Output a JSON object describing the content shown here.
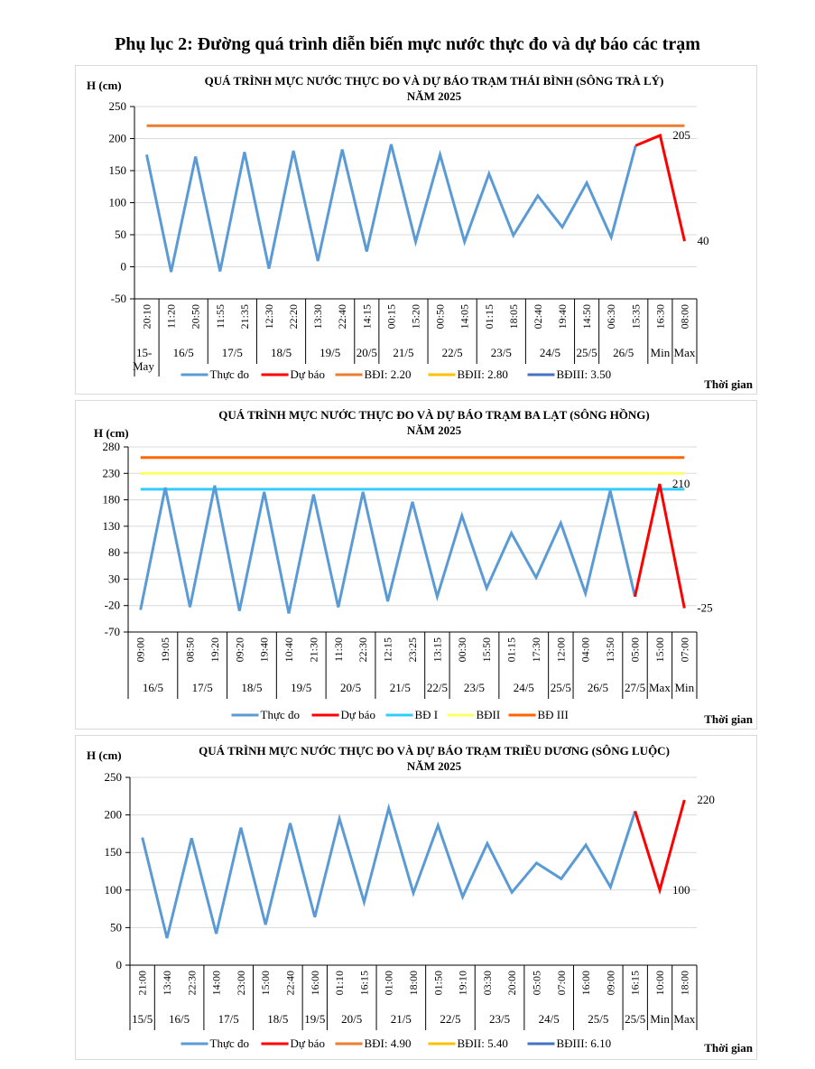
{
  "page": {
    "title": "Phụ lục 2: Đường quá trình diễn biến mực nước thực đo và dự báo các trạm"
  },
  "chart_data": [
    {
      "type": "line",
      "title_line1": "QUÁ TRÌNH MỰC NƯỚC THỰC ĐO VÀ DỰ BÁO TRẠM THÁI BÌNH (SÔNG TRÀ LÝ)",
      "title_line2": "NĂM 2025",
      "ylabel": "H (cm)",
      "xlabel": "Thời gian",
      "ylim": [
        -50,
        250
      ],
      "yticks": [
        -50,
        0,
        50,
        100,
        150,
        200,
        250
      ],
      "grid": true,
      "legend_position": "bottom",
      "categories": [
        "20:10",
        "11:20",
        "20:50",
        "11:55",
        "21:35",
        "12:30",
        "22:20",
        "13:30",
        "22:40",
        "14:15",
        "00:15",
        "15:20",
        "00:50",
        "14:05",
        "01:15",
        "18:05",
        "02:40",
        "19:40",
        "14:50",
        "06:30",
        "15:35",
        "16:30",
        "08:00"
      ],
      "groups": [
        {
          "label": "15-May",
          "count": 1
        },
        {
          "label": "16/5",
          "count": 2
        },
        {
          "label": "17/5",
          "count": 2
        },
        {
          "label": "18/5",
          "count": 2
        },
        {
          "label": "19/5",
          "count": 2
        },
        {
          "label": "20/5",
          "count": 1
        },
        {
          "label": "21/5",
          "count": 2
        },
        {
          "label": "22/5",
          "count": 2
        },
        {
          "label": "23/5",
          "count": 2
        },
        {
          "label": "24/5",
          "count": 2
        },
        {
          "label": "25/5",
          "count": 1
        },
        {
          "label": "26/5",
          "count": 2
        },
        {
          "label": "Min",
          "count": 1
        },
        {
          "label": "Max",
          "count": 1
        }
      ],
      "series": [
        {
          "name": "Thực đo",
          "color": "#5b9bd5",
          "start": 0,
          "values": [
            175,
            -8,
            172,
            -7,
            179,
            -3,
            181,
            9,
            183,
            24,
            191,
            39,
            175,
            39,
            145,
            49,
            111,
            62,
            131,
            46,
            189
          ]
        },
        {
          "name": "Dự báo",
          "color": "#ff0000",
          "start": 20,
          "values": [
            189,
            205,
            40
          ]
        },
        {
          "name": "BĐI: 2.20",
          "color": "#ed7d31",
          "constant": 220
        },
        {
          "name": "BĐII: 2.80",
          "color": "#ffc000",
          "constant": null
        },
        {
          "name": "BĐIII: 3.50",
          "color": "#4472c4",
          "constant": null
        }
      ],
      "annotations": [
        {
          "index": 21,
          "value": 205,
          "text": "205"
        },
        {
          "index": 22,
          "value": 40,
          "text": "40"
        }
      ]
    },
    {
      "type": "line",
      "title_line1": "QUÁ TRÌNH MỰC NƯỚC THỰC ĐO VÀ DỰ BÁO TRẠM BA LẠT (SÔNG HỒNG)",
      "title_line2": "NĂM 2025",
      "ylabel": "H (cm)",
      "xlabel": "Thời gian",
      "ylim": [
        -70,
        280
      ],
      "yticks": [
        -70,
        -20,
        30,
        80,
        130,
        180,
        230,
        280
      ],
      "grid": true,
      "legend_position": "bottom",
      "categories": [
        "09:00",
        "19:05",
        "08:50",
        "19:20",
        "09:20",
        "19:40",
        "10:40",
        "21:30",
        "11:30",
        "22:30",
        "12:15",
        "23:25",
        "13:15",
        "00:30",
        "15:50",
        "01:15",
        "17:30",
        "12:00",
        "04:00",
        "13:50",
        "05:00",
        "15:00",
        "07:00"
      ],
      "groups": [
        {
          "label": "16/5",
          "count": 2
        },
        {
          "label": "17/5",
          "count": 2
        },
        {
          "label": "18/5",
          "count": 2
        },
        {
          "label": "19/5",
          "count": 2
        },
        {
          "label": "20/5",
          "count": 2
        },
        {
          "label": "21/5",
          "count": 2
        },
        {
          "label": "22/5",
          "count": 1
        },
        {
          "label": "23/5",
          "count": 2
        },
        {
          "label": "24/5",
          "count": 2
        },
        {
          "label": "25/5",
          "count": 1
        },
        {
          "label": "26/5",
          "count": 2
        },
        {
          "label": "27/5",
          "count": 1
        },
        {
          "label": "Max",
          "count": 1
        },
        {
          "label": "Min",
          "count": 1
        }
      ],
      "series": [
        {
          "name": "Thực đo",
          "color": "#5b9bd5",
          "start": 0,
          "values": [
            -28,
            203,
            -23,
            207,
            -30,
            195,
            -35,
            190,
            -23,
            195,
            -12,
            176,
            -3,
            150,
            13,
            117,
            33,
            136,
            3,
            197,
            -3
          ]
        },
        {
          "name": "Dự báo",
          "color": "#ff0000",
          "start": 20,
          "values": [
            -3,
            210,
            -25
          ]
        },
        {
          "name": "BĐ I",
          "color": "#33ccff",
          "constant": 200
        },
        {
          "name": "BĐII",
          "color": "#ffff66",
          "constant": 230
        },
        {
          "name": "BĐ III",
          "color": "#ff6600",
          "constant": 260
        }
      ],
      "annotations": [
        {
          "index": 21,
          "value": 210,
          "text": "210"
        },
        {
          "index": 22,
          "value": -25,
          "text": "-25"
        }
      ]
    },
    {
      "type": "line",
      "title_line1": "QUÁ TRÌNH MỰC NƯỚC THỰC ĐO VÀ DỰ BÁO TRẠM TRIỀU DƯƠNG  (SÔNG LUỘC)",
      "title_line2": "NĂM 2025",
      "ylabel": "H (cm)",
      "xlabel": "Thời gian",
      "ylim": [
        0,
        250
      ],
      "yticks": [
        0,
        50,
        100,
        150,
        200,
        250
      ],
      "grid": true,
      "legend_position": "bottom",
      "categories": [
        "21:00",
        "13:40",
        "22:30",
        "14:00",
        "23:00",
        "15:00",
        "22:40",
        "16:00",
        "01:10",
        "16:15",
        "01:00",
        "18:00",
        "01:50",
        "19:10",
        "03:30",
        "20:00",
        "05:05",
        "07:00",
        "16:00",
        "09:00",
        "16:15",
        "10:00",
        "18:00"
      ],
      "groups": [
        {
          "label": "15/5",
          "count": 1
        },
        {
          "label": "16/5",
          "count": 2
        },
        {
          "label": "17/5",
          "count": 2
        },
        {
          "label": "18/5",
          "count": 2
        },
        {
          "label": "19/5",
          "count": 1
        },
        {
          "label": "20/5",
          "count": 2
        },
        {
          "label": "21/5",
          "count": 2
        },
        {
          "label": "22/5",
          "count": 2
        },
        {
          "label": "23/5",
          "count": 2
        },
        {
          "label": "24/5",
          "count": 2
        },
        {
          "label": "25/5",
          "count": 2
        },
        {
          "label": "25/5",
          "count": 1
        },
        {
          "label": "Min",
          "count": 1
        },
        {
          "label": "Max",
          "count": 1
        }
      ],
      "series": [
        {
          "name": "Thực đo",
          "color": "#5b9bd5",
          "start": 0,
          "values": [
            170,
            36,
            169,
            42,
            183,
            54,
            189,
            64,
            195,
            84,
            209,
            96,
            186,
            91,
            162,
            97,
            136,
            115,
            160,
            104,
            205
          ]
        },
        {
          "name": "Dự báo",
          "color": "#ff0000",
          "start": 20,
          "values": [
            205,
            100,
            220
          ]
        },
        {
          "name": "BĐI: 4.90",
          "color": "#ed7d31",
          "constant": null
        },
        {
          "name": "BĐII: 5.40",
          "color": "#ffc000",
          "constant": null
        },
        {
          "name": "BĐIII: 6.10",
          "color": "#4472c4",
          "constant": null
        }
      ],
      "annotations": [
        {
          "index": 21,
          "value": 100,
          "text": "100"
        },
        {
          "index": 22,
          "value": 220,
          "text": "220"
        }
      ]
    }
  ]
}
